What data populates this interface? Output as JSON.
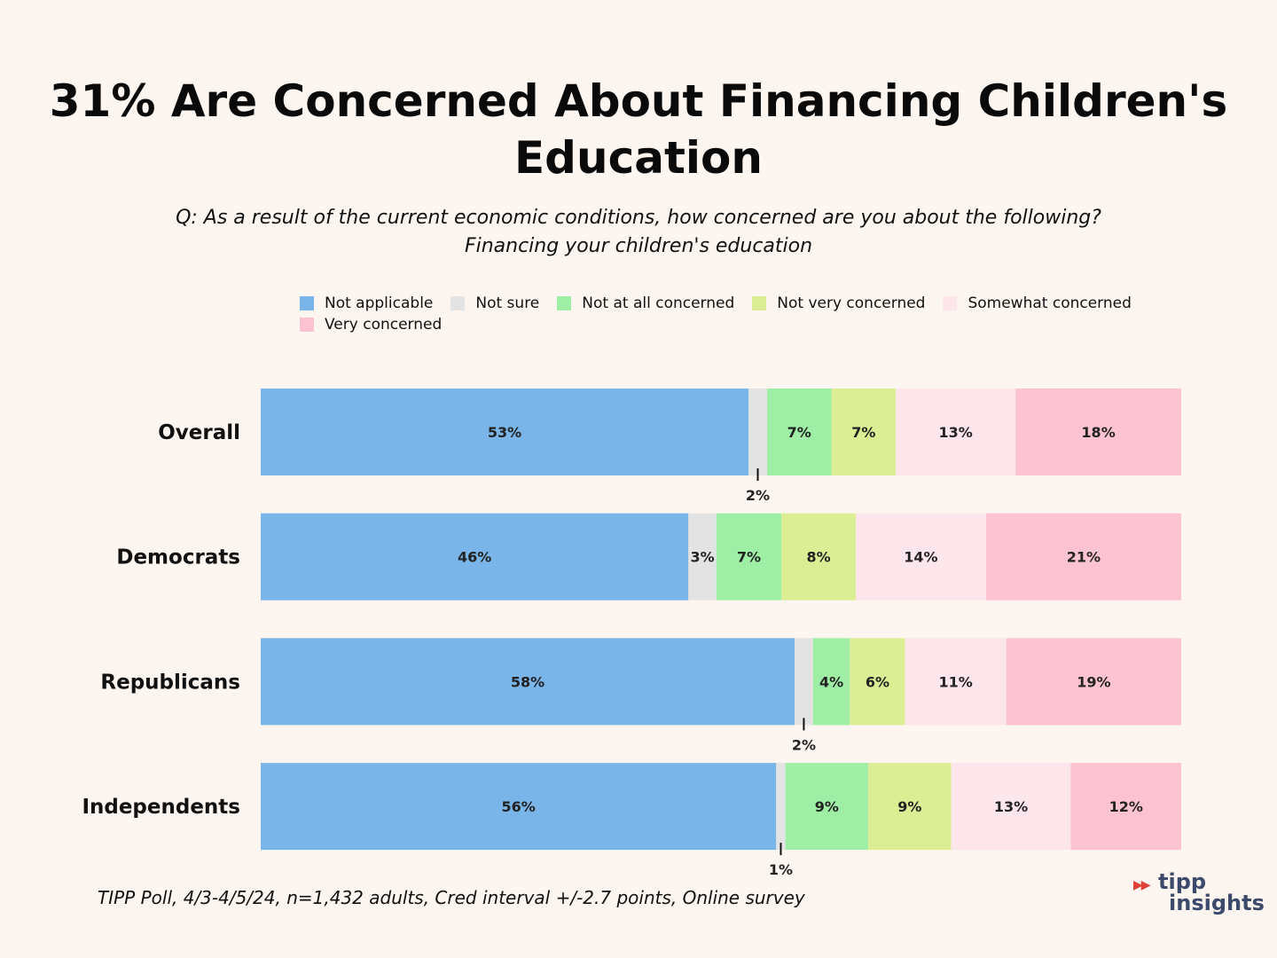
{
  "title": "31% Are Concerned About Financing Children's Education",
  "subtitle_line1": "Q: As a result of the current economic conditions, how concerned are you about the following?",
  "subtitle_line2": "Financing your children's education",
  "footer": "TIPP Poll, 4/3-4/5/24, n=1,432 adults, Cred interval +/-2.7 points, Online survey",
  "logo": {
    "mark": "▶▶",
    "line1": "tipp",
    "line2": "insights"
  },
  "chart_data": {
    "type": "bar",
    "orientation": "horizontal",
    "stacked": true,
    "title": "31% Are Concerned About Financing Children's Education",
    "xlabel": "",
    "ylabel": "",
    "xlim": [
      0,
      100
    ],
    "grid": false,
    "legend_position": "top",
    "categories": [
      "Overall",
      "Democrats",
      "Republicans",
      "Independents"
    ],
    "series": [
      {
        "name": "Not applicable",
        "color": "#79b5e8",
        "values": [
          53,
          46,
          58,
          56
        ],
        "labels": [
          "53%",
          "46%",
          "58%",
          "56%"
        ]
      },
      {
        "name": "Not sure",
        "color": "#e3e3e3",
        "values": [
          2,
          3,
          2,
          1
        ],
        "labels": [
          "2%",
          "3%",
          "2%",
          "1%"
        ]
      },
      {
        "name": "Not at all concerned",
        "color": "#9eeea6",
        "values": [
          7,
          7,
          4,
          9
        ],
        "labels": [
          "7%",
          "7%",
          "4%",
          "9%"
        ]
      },
      {
        "name": "Not very concerned",
        "color": "#dcee93",
        "values": [
          7,
          8,
          6,
          9
        ],
        "labels": [
          "7%",
          "8%",
          "6%",
          "9%"
        ]
      },
      {
        "name": "Somewhat concerned",
        "color": "#fde5ec",
        "values": [
          13,
          14,
          11,
          13
        ],
        "labels": [
          "13%",
          "14%",
          "11%",
          "13%"
        ]
      },
      {
        "name": "Very concerned",
        "color": "#fdc3d2",
        "values": [
          18,
          21,
          19,
          12
        ],
        "labels": [
          "18%",
          "21%",
          "19%",
          "12%"
        ]
      }
    ]
  }
}
